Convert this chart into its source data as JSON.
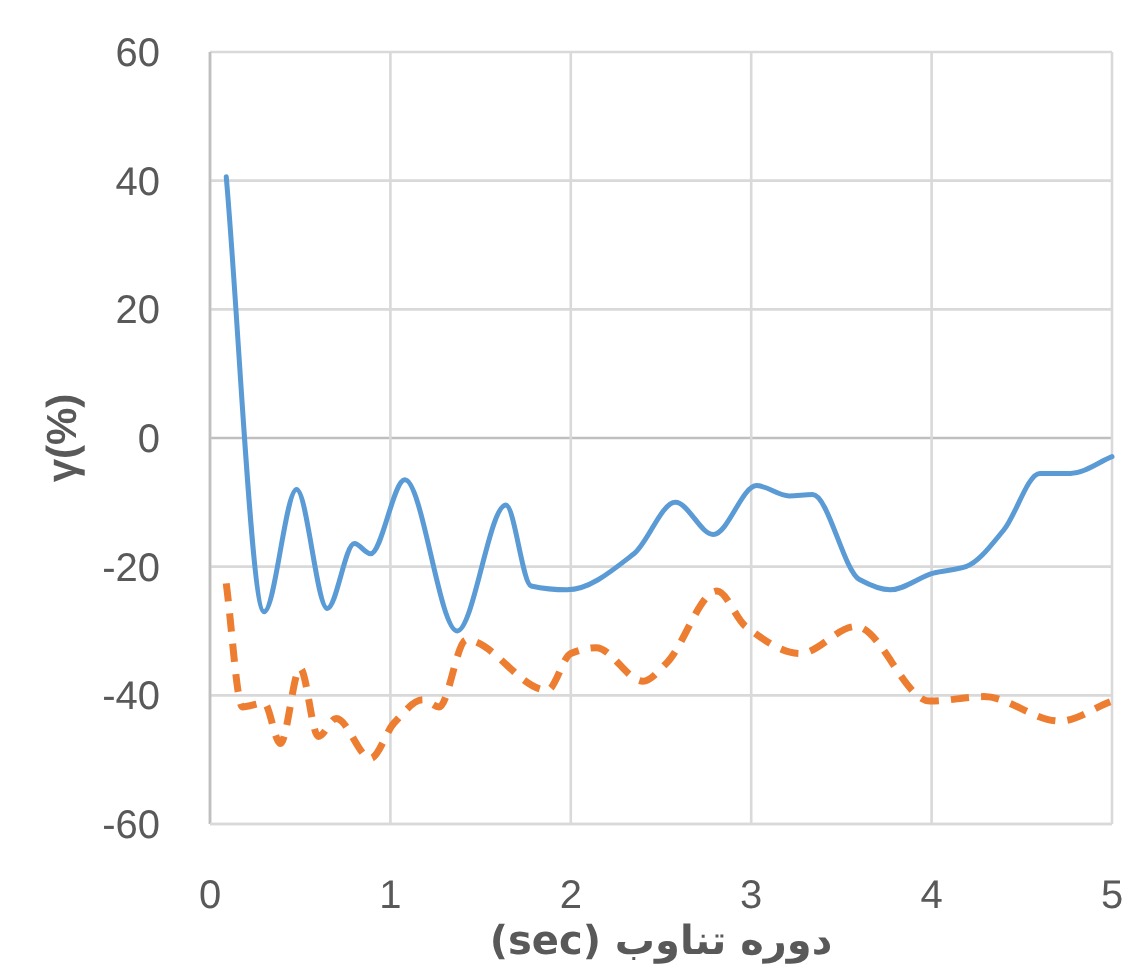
{
  "chart_data": {
    "type": "line",
    "xlabel": "دوره تناوب (sec)",
    "ylabel": "γ(%)",
    "xlim": [
      0,
      5
    ],
    "ylim": [
      -60,
      60
    ],
    "xticks": [
      0,
      1,
      2,
      3,
      4,
      5
    ],
    "yticks": [
      -60,
      -40,
      -20,
      0,
      20,
      40,
      60
    ],
    "grid": true,
    "series": [
      {
        "color": "#5b9bd5",
        "line_style": "solid",
        "x": [
          0.09,
          0.3,
          0.48,
          0.65,
          0.8,
          0.89,
          1.08,
          1.37,
          1.64,
          1.78,
          1.98,
          2.35,
          2.58,
          2.79,
          3.03,
          3.21,
          3.34,
          3.6,
          3.77,
          4.01,
          4.19,
          4.4,
          4.6,
          4.77,
          5.0
        ],
        "values": [
          40.6,
          -27,
          -8,
          -26.5,
          -16.4,
          -18,
          -6.5,
          -30,
          -10.4,
          -23,
          -23.6,
          -18,
          -10,
          -15,
          -7.4,
          -9,
          -8.8,
          -22,
          -23.6,
          -21,
          -20,
          -14.3,
          -5.5,
          -5.5,
          -2.9
        ]
      },
      {
        "color": "#ed7d31",
        "line_style": "dashed",
        "x": [
          0.09,
          0.18,
          0.3,
          0.39,
          0.5,
          0.6,
          0.7,
          0.89,
          1.02,
          1.18,
          1.27,
          1.42,
          1.87,
          2.0,
          2.14,
          2.4,
          2.53,
          2.81,
          2.97,
          3.27,
          3.58,
          3.99,
          4.29,
          4.71,
          4.99
        ],
        "values": [
          -22.6,
          -41.8,
          -41.2,
          -47.5,
          -35.8,
          -46.4,
          -43.6,
          -49.8,
          -44.3,
          -40.7,
          -41.8,
          -31.4,
          -39.2,
          -33.5,
          -32.6,
          -37.8,
          -35,
          -23.8,
          -29.3,
          -33.5,
          -29.3,
          -40.9,
          -40.2,
          -44,
          -41
        ]
      }
    ]
  }
}
